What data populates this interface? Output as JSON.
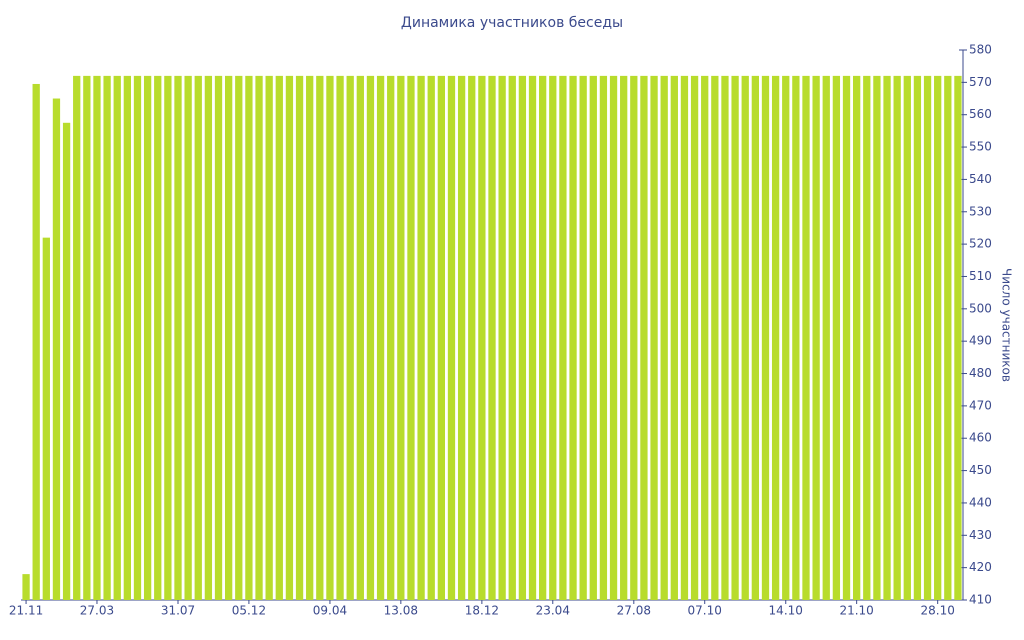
{
  "chart_data": {
    "type": "bar",
    "title": "Динамика участников беседы",
    "ylabel": "Число участников",
    "categories": [
      "21.11",
      null,
      null,
      null,
      null,
      null,
      null,
      "27.03",
      null,
      null,
      null,
      null,
      null,
      null,
      null,
      "31.07",
      null,
      null,
      null,
      null,
      null,
      null,
      "05.12",
      null,
      null,
      null,
      null,
      null,
      null,
      null,
      "09.04",
      null,
      null,
      null,
      null,
      null,
      null,
      "13.08",
      null,
      null,
      null,
      null,
      null,
      null,
      null,
      "18.12",
      null,
      null,
      null,
      null,
      null,
      null,
      "23.04",
      null,
      null,
      null,
      null,
      null,
      null,
      null,
      "27.08",
      null,
      null,
      null,
      null,
      null,
      null,
      "07.10",
      null,
      null,
      null,
      null,
      null,
      null,
      null,
      "14.10",
      null,
      null,
      null,
      null,
      null,
      null,
      "21.10",
      null,
      null,
      null,
      null,
      null,
      null,
      null,
      "28.10",
      null,
      null
    ],
    "values": [
      418,
      569.5,
      522,
      565,
      557.5,
      572,
      572,
      572,
      572,
      572,
      572,
      572,
      572,
      572,
      572,
      572,
      572,
      572,
      572,
      572,
      572,
      572,
      572,
      572,
      572,
      572,
      572,
      572,
      572,
      572,
      572,
      572,
      572,
      572,
      572,
      572,
      572,
      572,
      572,
      572,
      572,
      572,
      572,
      572,
      572,
      572,
      572,
      572,
      572,
      572,
      572,
      572,
      572,
      572,
      572,
      572,
      572,
      572,
      572,
      572,
      572,
      572,
      572,
      572,
      572,
      572,
      572,
      572,
      572,
      572,
      572,
      572,
      572,
      572,
      572,
      572,
      572,
      572,
      572,
      572,
      572,
      572,
      572,
      572,
      572,
      572,
      572,
      572,
      572,
      572,
      572,
      572,
      572
    ],
    "color": "#b8dc2c",
    "ylim": [
      410,
      580
    ],
    "yticks": [
      410,
      420,
      430,
      440,
      450,
      460,
      470,
      480,
      490,
      500,
      510,
      520,
      530,
      540,
      550,
      560,
      570,
      580
    ]
  }
}
